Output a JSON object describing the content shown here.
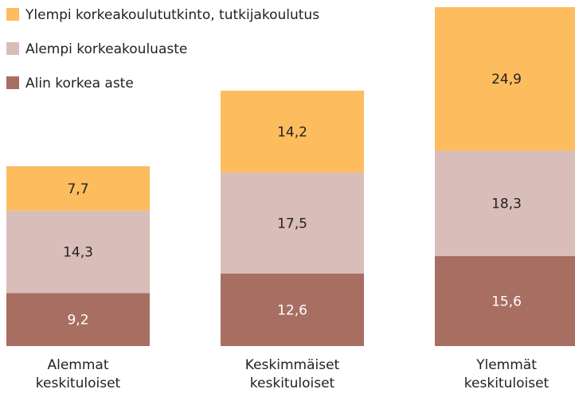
{
  "chart_data": {
    "type": "stacked-bar",
    "categories": [
      "Alemmat keskituloiset",
      "Keskimmäiset keskituloiset",
      "Ylemmät keskituloiset"
    ],
    "series": [
      {
        "name": "Alin korkea aste",
        "color": "#a86e62",
        "values": [
          9.2,
          12.6,
          15.6
        ],
        "value_labels": [
          "9,2",
          "12,6",
          "15,6"
        ]
      },
      {
        "name": "Alempi korkeakouluaste",
        "color": "#d9bdb8",
        "values": [
          14.3,
          17.5,
          18.3
        ],
        "value_labels": [
          "14,3",
          "17,5",
          "18,3"
        ]
      },
      {
        "name": "Ylempi korkeakoulututkinto, tutkijakoulutus",
        "color": "#fdbc5e",
        "values": [
          7.7,
          14.2,
          24.9
        ],
        "value_labels": [
          "7,7",
          "14,2",
          "24,9"
        ]
      }
    ]
  }
}
